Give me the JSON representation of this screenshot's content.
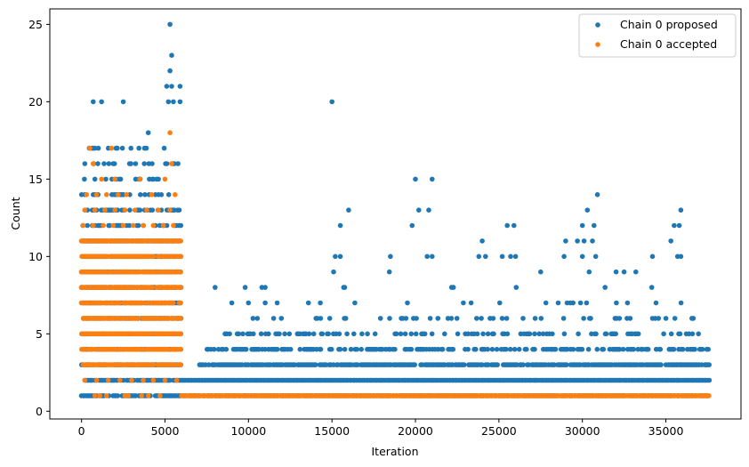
{
  "chart_data": {
    "type": "scatter",
    "xlabel": "Iteration",
    "ylabel": "Count",
    "xlim": [
      -1900,
      39500
    ],
    "ylim": [
      -0.5,
      26
    ],
    "xticks": [
      0,
      5000,
      10000,
      15000,
      20000,
      25000,
      30000,
      35000
    ],
    "yticks": [
      0,
      5,
      10,
      15,
      20,
      25
    ],
    "grid": false,
    "legend_placement": "top-right",
    "series": [
      {
        "name": "Chain 0 proposed",
        "color": "#1f77b4",
        "bands": [
          {
            "y": 1,
            "x_from": 6000,
            "x_to": 37600,
            "density": 0.9
          },
          {
            "y": 2,
            "x_from": 6000,
            "x_to": 37600,
            "density": 1.0
          },
          {
            "y": 3,
            "x_from": 7000,
            "x_to": 37600,
            "density": 0.85
          },
          {
            "y": 4,
            "x_from": 7500,
            "x_to": 37600,
            "density": 0.5
          },
          {
            "y": 5,
            "x_from": 8500,
            "x_to": 37000,
            "density": 0.3
          },
          {
            "y": 6,
            "x_from": 9000,
            "x_to": 37000,
            "density": 0.12
          },
          {
            "y": 7,
            "x_from": 10000,
            "x_to": 36500,
            "density": 0.06
          },
          {
            "y": 8,
            "x_from": 12000,
            "x_to": 36500,
            "density": 0.04
          },
          {
            "y": 9,
            "x_from": 15000,
            "x_to": 36000,
            "density": 0.02
          }
        ],
        "points": [
          [
            15000,
            20
          ],
          [
            16000,
            13
          ],
          [
            15500,
            12
          ],
          [
            15200,
            10
          ],
          [
            15500,
            10
          ],
          [
            20000,
            15
          ],
          [
            21000,
            15
          ],
          [
            19800,
            12
          ],
          [
            20200,
            13
          ],
          [
            20800,
            13
          ],
          [
            18500,
            10
          ],
          [
            20700,
            10
          ],
          [
            21000,
            10
          ],
          [
            25500,
            12
          ],
          [
            25900,
            12
          ],
          [
            24000,
            11
          ],
          [
            23800,
            10
          ],
          [
            24200,
            10
          ],
          [
            25200,
            10
          ],
          [
            25700,
            10
          ],
          [
            26000,
            10
          ],
          [
            30900,
            14
          ],
          [
            30300,
            13
          ],
          [
            30000,
            12
          ],
          [
            30700,
            12
          ],
          [
            29000,
            11
          ],
          [
            29700,
            11
          ],
          [
            30100,
            11
          ],
          [
            30600,
            11
          ],
          [
            28900,
            10
          ],
          [
            30000,
            10
          ],
          [
            30800,
            10
          ],
          [
            35900,
            13
          ],
          [
            35500,
            12
          ],
          [
            35800,
            12
          ],
          [
            35300,
            11
          ],
          [
            34200,
            10
          ],
          [
            35700,
            10
          ],
          [
            35900,
            10
          ],
          [
            9800,
            8
          ],
          [
            10800,
            8
          ],
          [
            11000,
            8
          ],
          [
            8000,
            8
          ],
          [
            9000,
            7
          ],
          [
            10000,
            7
          ],
          [
            11000,
            7
          ],
          [
            27500,
            9
          ],
          [
            32500,
            9
          ],
          [
            33200,
            9
          ],
          [
            4000,
            18
          ],
          [
            5300,
            25
          ],
          [
            5400,
            23
          ],
          [
            5300,
            22
          ],
          [
            5100,
            21
          ],
          [
            5400,
            21
          ],
          [
            5900,
            21
          ],
          [
            700,
            20
          ],
          [
            1200,
            20
          ],
          [
            2500,
            20
          ],
          [
            5900,
            20
          ],
          [
            5200,
            20
          ],
          [
            5500,
            20
          ]
        ],
        "early_block": {
          "x_from": 0,
          "x_to": 6000,
          "y_from": 1,
          "y_to": 17,
          "density": 0.85
        }
      },
      {
        "name": "Chain 0 accepted",
        "color": "#ff7f0e",
        "bands": [
          {
            "y": 1,
            "x_from": 6000,
            "x_to": 37600,
            "density": 1.0
          }
        ],
        "early_block": {
          "x_from": 0,
          "x_to": 6000,
          "y_from": 3,
          "y_to": 11,
          "density": 0.9
        },
        "points": [
          [
            500,
            17
          ],
          [
            1800,
            17
          ],
          [
            5300,
            18
          ],
          [
            5400,
            16
          ],
          [
            700,
            16
          ],
          [
            1200,
            15
          ],
          [
            2000,
            15
          ],
          [
            3500,
            15
          ],
          [
            5000,
            15
          ],
          [
            300,
            14
          ],
          [
            900,
            14
          ],
          [
            1500,
            14
          ],
          [
            2200,
            14
          ],
          [
            2700,
            14
          ],
          [
            4200,
            14
          ],
          [
            5600,
            14
          ],
          [
            200,
            13
          ],
          [
            800,
            13
          ],
          [
            1400,
            13
          ],
          [
            2000,
            13
          ],
          [
            2600,
            13
          ],
          [
            3200,
            13
          ],
          [
            3900,
            13
          ],
          [
            4600,
            13
          ],
          [
            5300,
            13
          ],
          [
            100,
            12
          ],
          [
            700,
            12
          ],
          [
            1300,
            12
          ],
          [
            1900,
            12
          ],
          [
            2500,
            12
          ],
          [
            3100,
            12
          ],
          [
            3700,
            12
          ],
          [
            4300,
            12
          ],
          [
            4900,
            12
          ],
          [
            5500,
            12
          ],
          [
            200,
            2
          ],
          [
            900,
            2
          ],
          [
            1600,
            2
          ],
          [
            2300,
            2
          ],
          [
            3000,
            2
          ],
          [
            3700,
            2
          ],
          [
            4300,
            2
          ],
          [
            5000,
            2
          ],
          [
            5700,
            2
          ],
          [
            800,
            1
          ],
          [
            1100,
            1
          ],
          [
            1500,
            1
          ],
          [
            2600,
            1
          ],
          [
            2800,
            1
          ],
          [
            3600,
            1
          ],
          [
            4000,
            1
          ],
          [
            4700,
            1
          ]
        ]
      }
    ]
  }
}
